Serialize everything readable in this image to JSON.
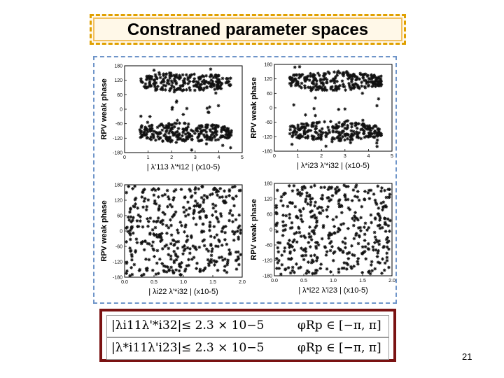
{
  "slide": {
    "title": "Constraned parameter spaces",
    "page_number": "21"
  },
  "panels": [
    {
      "ylabel": "RPV weak phase",
      "xlabel": "| λ'113 λ'*i12 | (x10-5)",
      "yticks": [
        "180",
        "120",
        "60",
        "0",
        "-60",
        "-120",
        "-180"
      ],
      "xticks": [
        "0",
        "1",
        "2",
        "3",
        "4",
        "5"
      ]
    },
    {
      "ylabel": "RPV weak phase",
      "xlabel": "| λ*i23 λ'*i32 | (x10-5)",
      "yticks": [
        "180",
        "120",
        "60",
        "0",
        "-60",
        "-120",
        "-180"
      ],
      "xticks": [
        "0",
        "1",
        "2",
        "3",
        "4",
        "5"
      ]
    },
    {
      "ylabel": "RPV weak phase",
      "xlabel": "| λi22 λ'*i32 | (x10-5)",
      "yticks": [
        "180",
        "120",
        "60",
        "0",
        "-60",
        "-120",
        "-180"
      ],
      "xticks": [
        "0.0",
        "0.5",
        "1.0",
        "1.5",
        "2.0"
      ]
    },
    {
      "ylabel": "RPV weak phase",
      "xlabel": "| λ*i22 λ'i23 | (x10-5)",
      "yticks": [
        "180",
        "120",
        "60",
        "0",
        "-60",
        "-120",
        "-180"
      ],
      "xticks": [
        "0.0",
        "0.5",
        "1.0",
        "1.5",
        "2.0"
      ]
    }
  ],
  "constraints": [
    {
      "lhs": "|λi11λ'*i32|",
      "bound": "≤ 2.3 × 10−5",
      "phase": "φRp ∈ [−π, π]"
    },
    {
      "lhs": "|λ*i11λ'i23|",
      "bound": "≤ 2.3 × 10−5",
      "phase": "φRp ∈ [−π, π]"
    }
  ]
}
